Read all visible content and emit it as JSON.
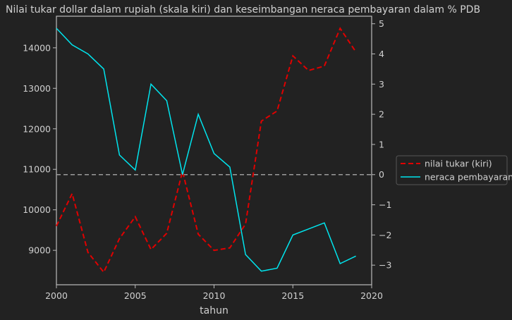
{
  "chart_data": {
    "type": "line",
    "title": "Nilai tukar dollar dalam rupiah (skala kiri) dan keseimbangan neraca pembayaran dalam % PDB",
    "xlabel": "tahun",
    "ylabel_left": "",
    "ylabel_right": "",
    "x": [
      2000,
      2001,
      2002,
      2003,
      2004,
      2005,
      2006,
      2007,
      2008,
      2009,
      2010,
      2011,
      2012,
      2013,
      2014,
      2015,
      2016,
      2017,
      2018,
      2019
    ],
    "xlim": [
      2000,
      2020
    ],
    "ylim_left": [
      8150,
      14780
    ],
    "ylim_right": [
      -3.65,
      5.25
    ],
    "x_ticks": [
      "2000",
      "2005",
      "2010",
      "2015",
      "2020"
    ],
    "y_left_ticks": [
      "9000",
      "10000",
      "11000",
      "12000",
      "13000",
      "14000"
    ],
    "y_right_ticks": [
      "−3",
      "−2",
      "−1",
      "0",
      "1",
      "2",
      "3",
      "4",
      "5"
    ],
    "series": [
      {
        "name": "nilai tukar (kiri)",
        "axis": "left",
        "style": "dashed",
        "color": "#e00000",
        "values": [
          9600,
          10400,
          8950,
          8460,
          9290,
          9830,
          9020,
          9420,
          10950,
          9400,
          9000,
          9060,
          9650,
          12190,
          12440,
          13800,
          13440,
          13550,
          14480,
          13900
        ]
      },
      {
        "name": "neraca pembayaran",
        "axis": "right",
        "style": "solid",
        "color": "#00e5ee",
        "values": [
          4.85,
          4.3,
          4.0,
          3.5,
          0.65,
          0.15,
          3.0,
          2.45,
          0.0,
          2.0,
          0.7,
          0.25,
          -2.65,
          -3.2,
          -3.1,
          -2.0,
          -1.8,
          -1.6,
          -2.95,
          -2.7
        ]
      }
    ],
    "reference_line": {
      "axis": "right",
      "value": 0,
      "style": "dashed",
      "color": "#9a9a9a"
    },
    "legend_position": "right",
    "grid": false
  },
  "colors": {
    "background": "#222222",
    "text": "#d0d0d0",
    "axes": "#bbbbbb"
  }
}
